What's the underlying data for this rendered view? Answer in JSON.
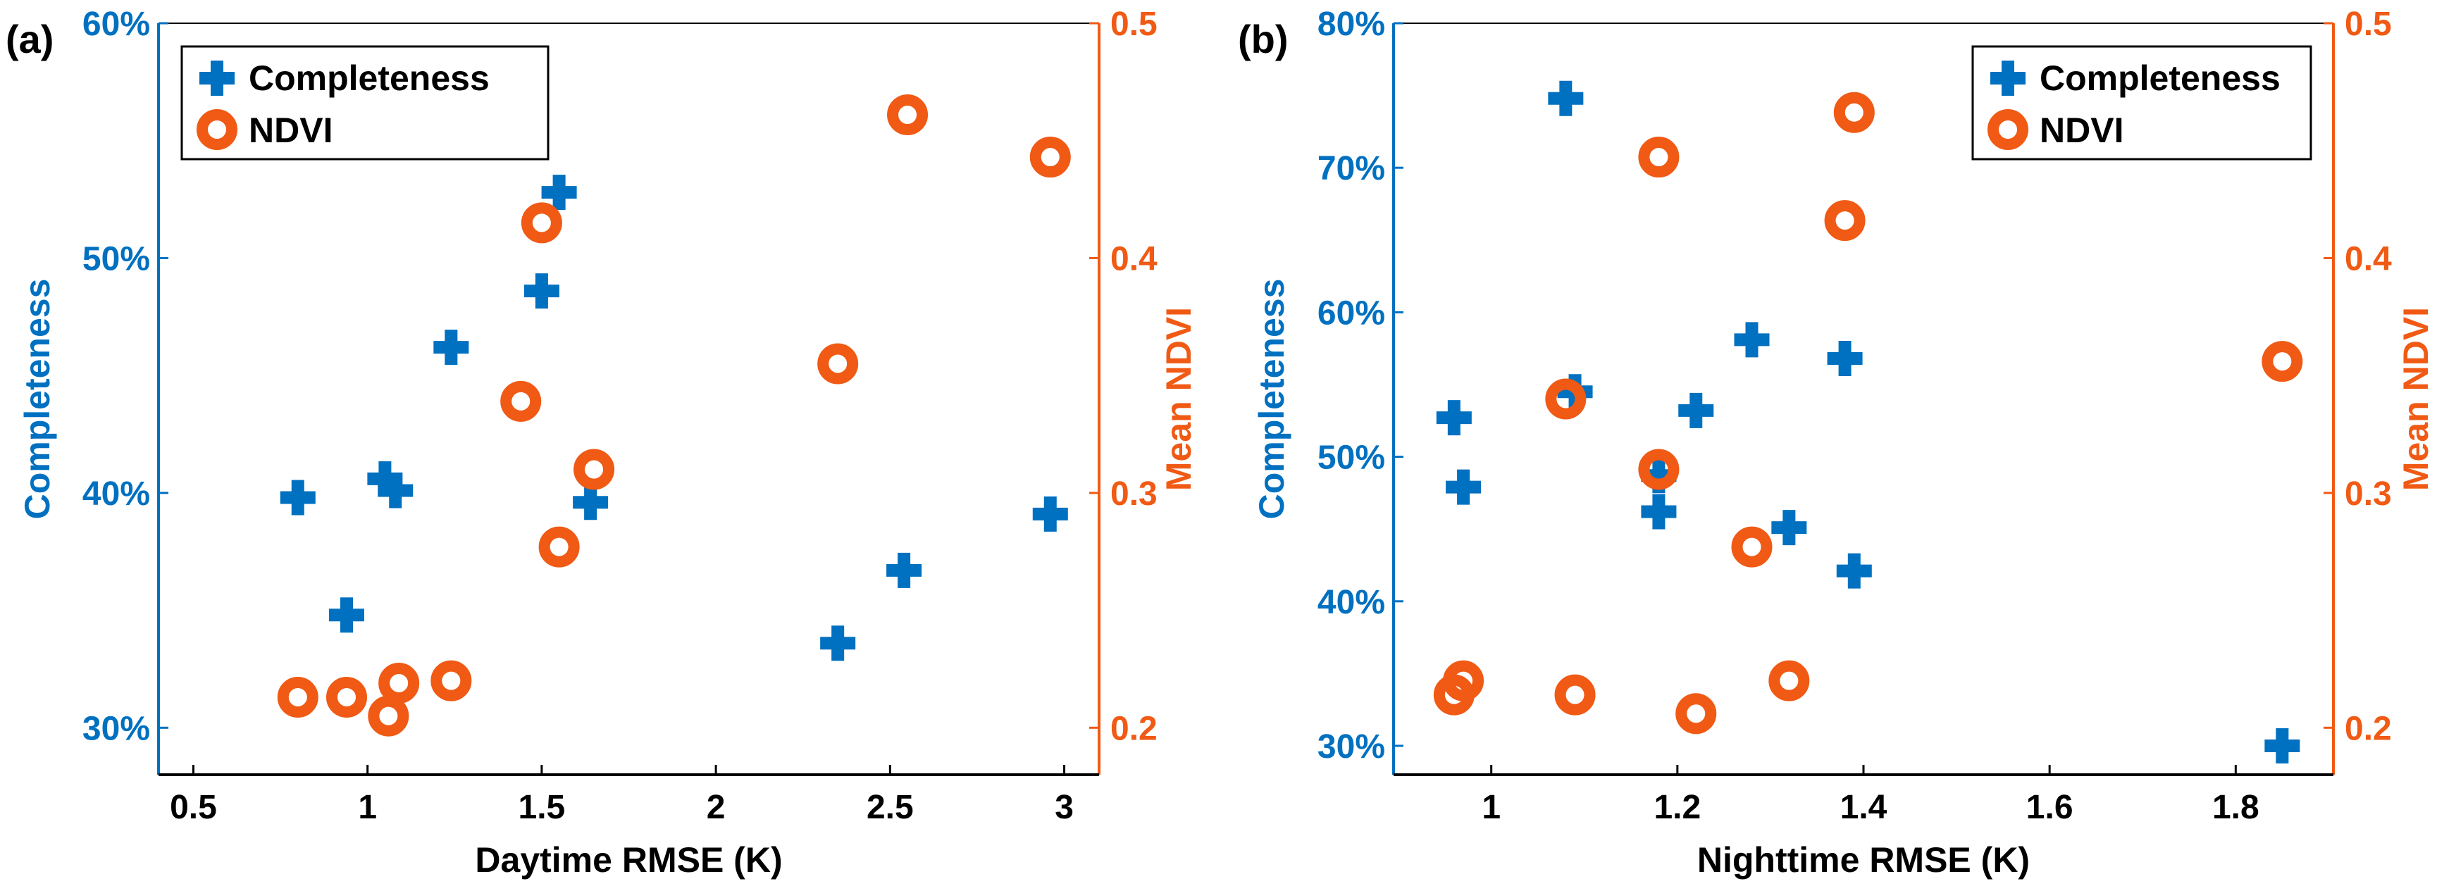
{
  "colors": {
    "completeness": "#0070C0",
    "ndvi": "#F05A14",
    "axis": "#000000",
    "background": "#ffffff"
  },
  "chart_data": [
    {
      "type": "scatter",
      "panel_label": "(a)",
      "xlabel": "Daytime RMSE (K)",
      "ylabel_left": "Completeness",
      "ylabel_right": "Mean NDVI",
      "xlim": [
        0.4,
        3.1
      ],
      "xticks": [
        0.5,
        1,
        1.5,
        2,
        2.5,
        3
      ],
      "xtick_labels": [
        "0.5",
        "1",
        "1.5",
        "2",
        "2.5",
        "3"
      ],
      "ylim_left": [
        0.28,
        0.6
      ],
      "yticks_left": [
        0.3,
        0.4,
        0.5,
        0.6
      ],
      "ytick_labels_left": [
        "30%",
        "40%",
        "50%",
        "60%"
      ],
      "ylim_right": [
        0.18,
        0.5
      ],
      "yticks_right": [
        0.2,
        0.3,
        0.4,
        0.5
      ],
      "ytick_labels_right": [
        "0.2",
        "0.3",
        "0.4",
        "0.5"
      ],
      "legend_position": "top-left",
      "series": [
        {
          "name": "Completeness",
          "marker": "plus",
          "axis": "left",
          "x": [
            0.8,
            0.94,
            1.05,
            1.08,
            1.24,
            1.5,
            1.55,
            1.64,
            2.35,
            2.54,
            2.96
          ],
          "y": [
            0.398,
            0.348,
            0.406,
            0.401,
            0.462,
            0.486,
            0.528,
            0.396,
            0.336,
            0.367,
            0.391
          ]
        },
        {
          "name": "NDVI",
          "marker": "circle",
          "axis": "right",
          "x": [
            0.8,
            0.94,
            1.06,
            1.09,
            1.24,
            1.44,
            1.5,
            1.55,
            1.65,
            2.35,
            2.55,
            2.96
          ],
          "y": [
            0.213,
            0.213,
            0.205,
            0.219,
            0.22,
            0.339,
            0.415,
            0.277,
            0.31,
            0.355,
            0.461,
            0.443
          ]
        }
      ]
    },
    {
      "type": "scatter",
      "panel_label": "(b)",
      "xlabel": "Nighttime RMSE (K)",
      "ylabel_left": "Completeness",
      "ylabel_right": "Mean NDVI",
      "xlim": [
        0.895,
        1.905
      ],
      "xticks": [
        1,
        1.2,
        1.4,
        1.6,
        1.8
      ],
      "xtick_labels": [
        "1",
        "1.2",
        "1.4",
        "1.6",
        "1.8"
      ],
      "ylim_left": [
        0.28,
        0.8
      ],
      "yticks_left": [
        0.3,
        0.4,
        0.5,
        0.6,
        0.7,
        0.8
      ],
      "ytick_labels_left": [
        "30%",
        "40%",
        "50%",
        "60%",
        "70%",
        "80%"
      ],
      "ylim_right": [
        0.18,
        0.5
      ],
      "yticks_right": [
        0.2,
        0.3,
        0.4,
        0.5
      ],
      "ytick_labels_right": [
        "0.2",
        "0.3",
        "0.4",
        "0.5"
      ],
      "legend_position": "top-right",
      "series": [
        {
          "name": "Completeness",
          "marker": "plus",
          "axis": "left",
          "x": [
            0.96,
            0.97,
            1.08,
            1.09,
            1.18,
            1.18,
            1.22,
            1.28,
            1.32,
            1.38,
            1.39,
            1.85
          ],
          "y": [
            0.527,
            0.479,
            0.748,
            0.545,
            0.487,
            0.462,
            0.532,
            0.581,
            0.451,
            0.568,
            0.421,
            0.3
          ]
        },
        {
          "name": "NDVI",
          "marker": "circle",
          "axis": "right",
          "x": [
            0.96,
            0.97,
            1.08,
            1.09,
            1.18,
            1.18,
            1.22,
            1.28,
            1.32,
            1.38,
            1.39,
            1.85
          ],
          "y": [
            0.214,
            0.22,
            0.34,
            0.214,
            0.443,
            0.31,
            0.206,
            0.277,
            0.22,
            0.416,
            0.462,
            0.356
          ]
        }
      ]
    }
  ]
}
